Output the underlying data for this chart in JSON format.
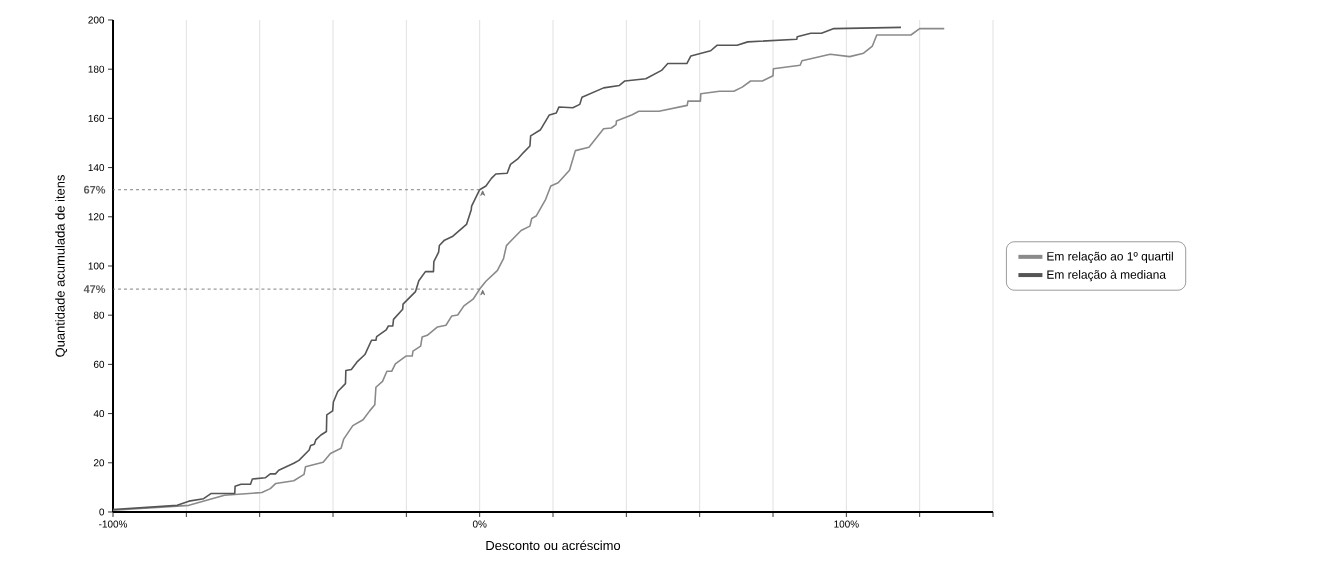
{
  "chart_data": {
    "type": "line",
    "xlabel": "Desconto ou acréscimo",
    "ylabel": "Quantidade acumulada de itens",
    "xlim": [
      -100,
      140
    ],
    "xticks": [
      {
        "value": -100,
        "label": "-100%"
      },
      {
        "value": -80,
        "label": null
      },
      {
        "value": -60,
        "label": null
      },
      {
        "value": -40,
        "label": null
      },
      {
        "value": -20,
        "label": null
      },
      {
        "value": 0,
        "label": "0%"
      },
      {
        "value": 20,
        "label": null
      },
      {
        "value": 40,
        "label": null
      },
      {
        "value": 60,
        "label": null
      },
      {
        "value": 80,
        "label": null
      },
      {
        "value": 100,
        "label": "100%"
      },
      {
        "value": 120,
        "label": null
      },
      {
        "value": 140,
        "label": null
      }
    ],
    "ylim": [
      0,
      200
    ],
    "yticks": [
      0,
      20,
      40,
      60,
      80,
      100,
      120,
      140,
      160,
      180,
      200
    ],
    "grid": "x",
    "legend": "right",
    "marker": "none",
    "line_style": "solid",
    "annotations": [
      {
        "text": "67%",
        "x": 0,
        "y": 131
      },
      {
        "text": "47%",
        "x": 0,
        "y": 90.6
      }
    ],
    "series": [
      {
        "name": "Em relação ao 1º quartil",
        "color": "#8a8a8a",
        "x": [
          -100,
          -79.3,
          -69.6,
          -59.4,
          -57.1,
          -55.6,
          -50.7,
          -47.9,
          -47.5,
          -42.7,
          -40.7,
          -37.8,
          -37.1,
          -34.6,
          -31.8,
          -30,
          -28.6,
          -28.3,
          -26.5,
          -25.3,
          -24,
          -23,
          -20.1,
          -18.4,
          -18.2,
          -16.1,
          -15.7,
          -14.3,
          -11.5,
          -9.2,
          -7.6,
          -6,
          -4.3,
          -1.8,
          0,
          1.7,
          4.8,
          6.5,
          7.3,
          11.3,
          13.7,
          14.2,
          15.4,
          18,
          19.4,
          21.4,
          24.5,
          26.1,
          29.8,
          33.8,
          35.9,
          37.2,
          37.3,
          41.6,
          43.4,
          48.9,
          56.6,
          56.8,
          60.2,
          60.3,
          65.4,
          69.3,
          71.6,
          73.9,
          77.1,
          80,
          80.1,
          87.4,
          87.9,
          95.6,
          100.9,
          104.7,
          107.1,
          108.3,
          117.6,
          120,
          126.7
        ],
        "values": [
          0.7,
          2.7,
          6.8,
          7.9,
          9.5,
          11.6,
          12.7,
          15.3,
          18.4,
          20.2,
          23.8,
          25.9,
          29.6,
          35.1,
          37.5,
          41.1,
          43.6,
          50.7,
          53.1,
          57.2,
          57.2,
          60.2,
          63.4,
          63.4,
          65.4,
          67.4,
          71.1,
          71.8,
          75.2,
          75.9,
          79.7,
          80.1,
          83.8,
          86.5,
          90.6,
          93.8,
          98.1,
          103,
          108.3,
          114.4,
          116.2,
          119.3,
          120.3,
          127.1,
          132.5,
          133.8,
          138.9,
          146.9,
          148.3,
          155.8,
          156.1,
          157.5,
          158.9,
          161.5,
          162.9,
          162.9,
          165.3,
          167,
          167,
          170,
          171,
          171,
          172.7,
          175.2,
          175.2,
          177.3,
          180.2,
          181.6,
          183.4,
          186.1,
          185.1,
          186.5,
          189.4,
          193.9,
          193.9,
          196.5,
          196.5
        ]
      },
      {
        "name": "Em relação à mediana",
        "color": "#555555",
        "x": [
          -100,
          -82.5,
          -79.3,
          -75.3,
          -73.3,
          -66.8,
          -66.7,
          -65.1,
          -62.5,
          -62,
          -58.5,
          -57.1,
          -55.7,
          -54.8,
          -50.7,
          -49.3,
          -46.5,
          -46.1,
          -45.1,
          -44.7,
          -43.3,
          -41.8,
          -41.7,
          -40.1,
          -39.9,
          -38.7,
          -36.6,
          -36.5,
          -35,
          -33.5,
          -31.3,
          -29.5,
          -28.3,
          -28.1,
          -25.5,
          -24.9,
          -23.7,
          -23.5,
          -21,
          -20.9,
          -17.5,
          -16.6,
          -14.8,
          -12.6,
          -12.5,
          -11.2,
          -11,
          -9.6,
          -7.3,
          -3.6,
          -2.3,
          -2.2,
          0,
          1.7,
          3.2,
          4.4,
          7.5,
          8.4,
          10.3,
          12,
          13.7,
          13.9,
          16.6,
          19,
          20.9,
          21.6,
          25.4,
          27.3,
          27.9,
          33.8,
          38.1,
          39.6,
          45.3,
          49.6,
          51.3,
          56.5,
          57.6,
          63,
          64.7,
          70.2,
          73.1,
          86.5,
          86.6,
          90.3,
          93.2,
          96.6,
          114.9
        ],
        "values": [
          1,
          2.7,
          4.4,
          5.4,
          7.5,
          7.5,
          10.5,
          11.3,
          11.3,
          13.4,
          13.9,
          15.5,
          15.5,
          17,
          19.8,
          21,
          25.2,
          27,
          27.5,
          29.3,
          31.3,
          32.7,
          39.5,
          41.1,
          44.7,
          49,
          52.2,
          57.5,
          57.9,
          60.9,
          64,
          69.8,
          69.8,
          71.3,
          74,
          75.6,
          75.6,
          78.3,
          82.4,
          84.5,
          89.6,
          94,
          97.7,
          97.7,
          101.8,
          105.6,
          108.3,
          110.5,
          112.1,
          116.9,
          122.9,
          124.3,
          131,
          132.5,
          135.6,
          137.4,
          137.7,
          141.3,
          143.4,
          146.2,
          148.8,
          152.9,
          155.4,
          161.4,
          162.2,
          164.6,
          164.3,
          165.7,
          168.6,
          172.4,
          173.4,
          175.2,
          176.1,
          179.5,
          182.3,
          182.3,
          185.4,
          187.5,
          189.7,
          189.7,
          191.1,
          192.2,
          193.2,
          194.6,
          194.6,
          196.5,
          197
        ]
      }
    ]
  }
}
